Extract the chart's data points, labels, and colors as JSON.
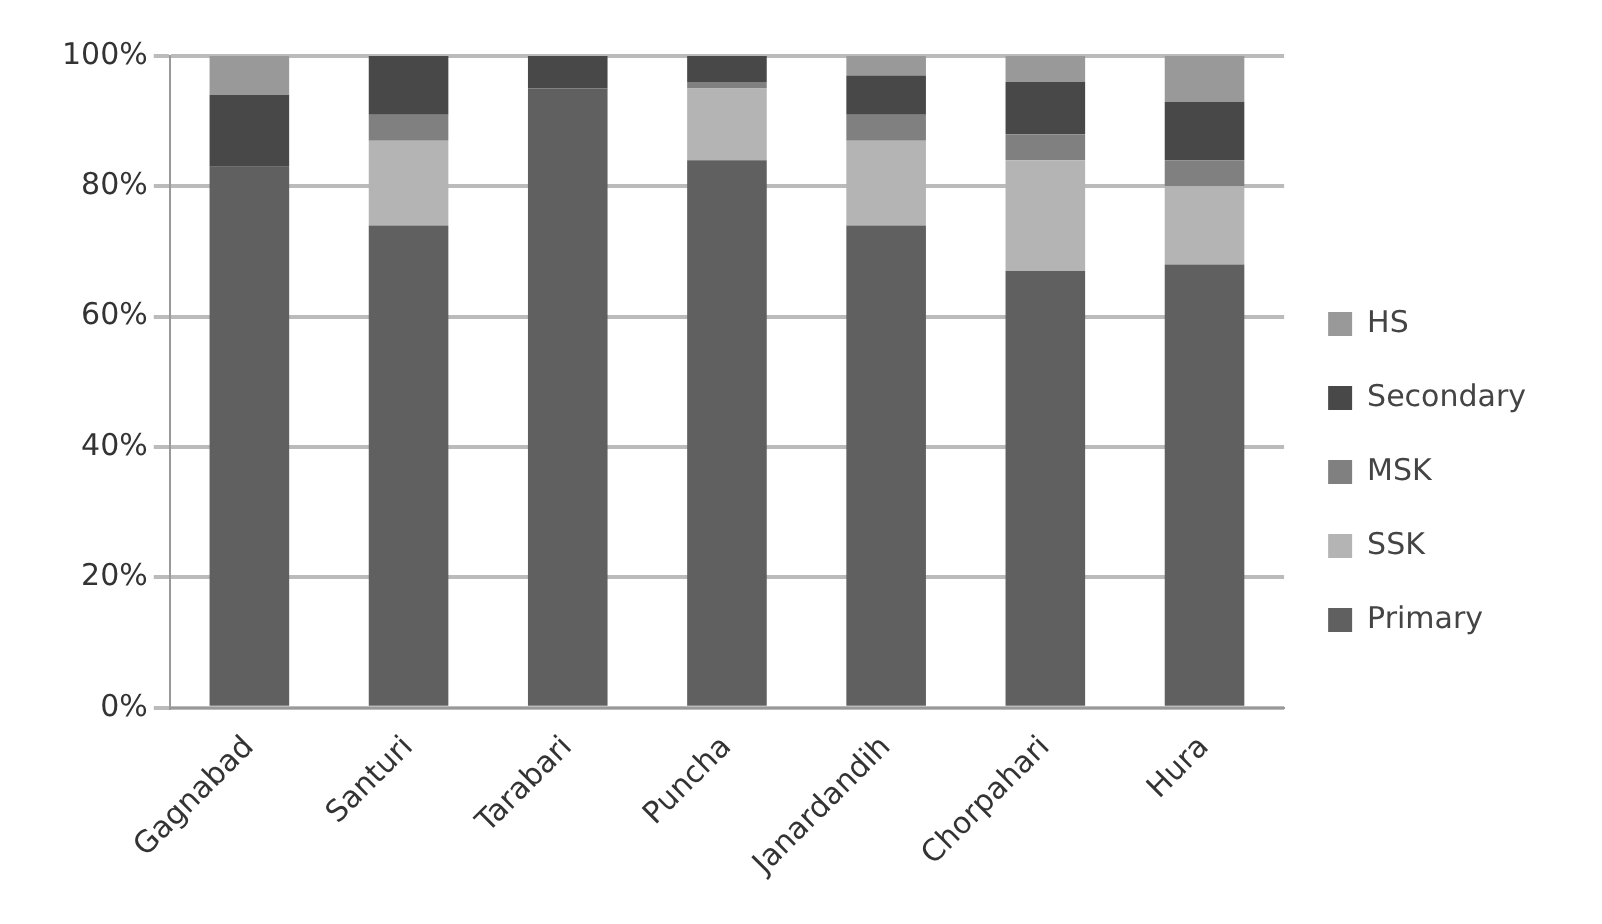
{
  "chart_data": {
    "type": "bar",
    "stacked": true,
    "categories": [
      "Gagnabad",
      "Santuri",
      "Tarabari",
      "Puncha",
      "Janardandih",
      "Chorpahari",
      "Hura"
    ],
    "series": [
      {
        "name": "Primary",
        "color": "#606060",
        "values": [
          83,
          74,
          95,
          84,
          74,
          67,
          68
        ]
      },
      {
        "name": "SSK",
        "color": "#b4b4b4",
        "values": [
          0,
          13,
          0,
          11,
          13,
          17,
          12
        ]
      },
      {
        "name": "MSK",
        "color": "#808080",
        "values": [
          0,
          4,
          0,
          1,
          4,
          4,
          4
        ]
      },
      {
        "name": "Secondary",
        "color": "#484848",
        "values": [
          11,
          9,
          5,
          4,
          6,
          8,
          9
        ]
      },
      {
        "name": "HS",
        "color": "#999999",
        "values": [
          6,
          0,
          0,
          0,
          3,
          4,
          7
        ]
      }
    ],
    "ylim": [
      0,
      100
    ],
    "yticks": [
      {
        "value": 0,
        "label": "0%"
      },
      {
        "value": 20,
        "label": "20%"
      },
      {
        "value": 40,
        "label": "40%"
      },
      {
        "value": 60,
        "label": "60%"
      },
      {
        "value": 80,
        "label": "80%"
      },
      {
        "value": 100,
        "label": "100%"
      }
    ],
    "grid": "y",
    "legend": "right"
  }
}
